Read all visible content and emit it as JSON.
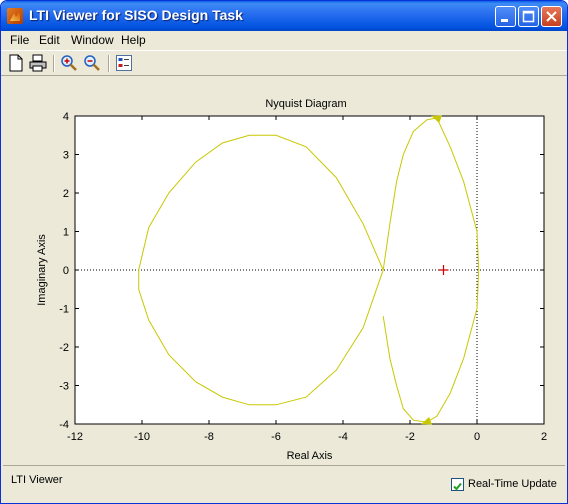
{
  "window": {
    "title": "LTI Viewer for SISO Design Task"
  },
  "menus": [
    "File",
    "Edit",
    "Window",
    "Help"
  ],
  "toolbar": [
    "new-doc-icon",
    "print-icon",
    "zoom-in-icon",
    "zoom-out-icon",
    "grid-icon"
  ],
  "chart_data": {
    "type": "line",
    "title": "Nyquist Diagram",
    "xlabel": "Real Axis",
    "ylabel": "Imaginary Axis",
    "xlim": [
      -12,
      2
    ],
    "ylim": [
      -4,
      4
    ],
    "xticks": [
      -12,
      -10,
      -8,
      -6,
      -4,
      -2,
      0,
      2
    ],
    "yticks": [
      -4,
      -3,
      -2,
      -1,
      0,
      1,
      2,
      3,
      4
    ],
    "grid": false,
    "critical_point": [
      -1,
      0
    ],
    "curve_color": "#c8c800",
    "marker_color": "#cc0000",
    "series": [
      {
        "x": [
          -2.8,
          -3.4,
          -4.2,
          -5.1,
          -6.0,
          -6.8,
          -7.6,
          -8.4,
          -9.2,
          -9.8,
          -10.1,
          -10.1,
          -9.8,
          -9.2,
          -8.4,
          -7.6,
          -6.8,
          -6.0,
          -5.1,
          -4.2,
          -3.4,
          -2.8,
          -2.6,
          -2.4,
          -2.2,
          -1.9,
          -1.5,
          -1.2,
          -0.8,
          -0.4,
          0.0,
          0.05,
          0.0,
          -0.4,
          -0.8,
          -1.2,
          -1.5,
          -1.9,
          -2.2,
          -2.4,
          -2.6,
          -2.8
        ],
        "y": [
          0.0,
          1.2,
          2.4,
          3.2,
          3.5,
          3.5,
          3.3,
          2.8,
          2.0,
          1.1,
          0.0,
          -0.5,
          -1.3,
          -2.2,
          -2.9,
          -3.3,
          -3.5,
          -3.5,
          -3.3,
          -2.6,
          -1.5,
          0.0,
          1.2,
          2.3,
          3.0,
          3.6,
          3.9,
          3.95,
          3.2,
          2.3,
          1.0,
          0.0,
          -1.0,
          -2.3,
          -3.2,
          -3.8,
          -3.95,
          -3.9,
          -3.6,
          -3.0,
          -2.3,
          -1.2
        ]
      }
    ]
  },
  "status": {
    "text": "LTI Viewer"
  },
  "realtime": {
    "label": "Real-Time Update",
    "checked": true
  }
}
